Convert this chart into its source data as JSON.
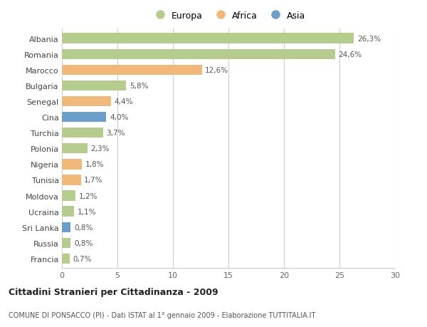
{
  "countries": [
    "Albania",
    "Romania",
    "Marocco",
    "Bulgaria",
    "Senegal",
    "Cina",
    "Turchia",
    "Polonia",
    "Nigeria",
    "Tunisia",
    "Moldova",
    "Ucraina",
    "Sri Lanka",
    "Russia",
    "Francia"
  ],
  "values": [
    26.3,
    24.6,
    12.6,
    5.8,
    4.4,
    4.0,
    3.7,
    2.3,
    1.8,
    1.7,
    1.2,
    1.1,
    0.8,
    0.8,
    0.7
  ],
  "labels": [
    "26,3%",
    "24,6%",
    "12,6%",
    "5,8%",
    "4,4%",
    "4,0%",
    "3,7%",
    "2,3%",
    "1,8%",
    "1,7%",
    "1,2%",
    "1,1%",
    "0,8%",
    "0,8%",
    "0,7%"
  ],
  "continents": [
    "Europa",
    "Europa",
    "Africa",
    "Europa",
    "Africa",
    "Asia",
    "Europa",
    "Europa",
    "Africa",
    "Africa",
    "Europa",
    "Europa",
    "Asia",
    "Europa",
    "Europa"
  ],
  "colors": {
    "Europa": "#b5cc8e",
    "Africa": "#f0b87b",
    "Asia": "#6b9ec8"
  },
  "title": "Cittadini Stranieri per Cittadinanza - 2009",
  "subtitle": "COMUNE DI PONSACCO (PI) - Dati ISTAT al 1° gennaio 2009 - Elaborazione TUTTITALIA.IT",
  "xlim": [
    0,
    30
  ],
  "xticks": [
    0,
    5,
    10,
    15,
    20,
    25,
    30
  ],
  "background_color": "#ffffff",
  "grid_color": "#cccccc",
  "bar_height": 0.65
}
